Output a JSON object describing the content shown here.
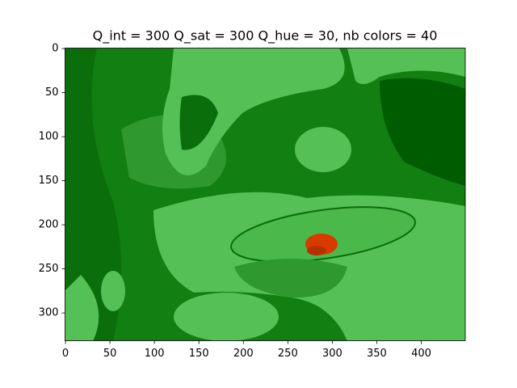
{
  "chart_data": {
    "type": "image",
    "title": "Q_int = 300 Q_sat = 300 Q_hue = 30, nb colors = 40",
    "xlim": [
      -0.5,
      449.5
    ],
    "xticks": [
      0,
      50,
      100,
      150,
      200,
      250,
      300,
      350,
      400
    ],
    "ylim": [
      331.5,
      -0.5
    ],
    "yticks": [
      0,
      50,
      100,
      150,
      200,
      250,
      300
    ]
  }
}
